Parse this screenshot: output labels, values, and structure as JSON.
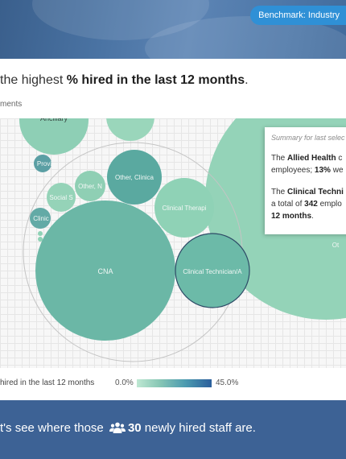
{
  "header": {
    "benchmark_label": "Benchmark: Industry"
  },
  "headline": {
    "prefix": "the highest ",
    "emphasis": "% hired in the last 12 months",
    "suffix": "."
  },
  "subhead": "ments",
  "chart_data": {
    "type": "bubble",
    "title": "the highest % hired in the last 12 months",
    "color_metric": "hired in the last 12 months",
    "color_scale": {
      "min": "0.0%",
      "max": "45.0%",
      "min_color": "#bfe8d3",
      "max_color": "#2c5f9c"
    },
    "groups": [
      {
        "name": "Clinical Technician/A",
        "bubbles": [
          {
            "label": "CNA",
            "color": "#6bb7a6"
          },
          {
            "label": "Clinical Technician/A",
            "color": "#6cbaa8",
            "highlighted": true
          },
          {
            "label": "Other, Clinica",
            "color": "#5aa9a0"
          },
          {
            "label": "Clinical Therapi",
            "color": "#8fd2b6"
          },
          {
            "label": "Other, N",
            "color": "#8fcfb4"
          },
          {
            "label": "Social S",
            "color": "#95d3b8"
          },
          {
            "label": "Provi",
            "color": "#5b9fa4"
          },
          {
            "label": "Clinic",
            "color": "#63aaa6"
          }
        ]
      },
      {
        "name": "Ancillary",
        "bubbles": [
          {
            "label": "Ancillary",
            "color": "#8ecfb5"
          }
        ]
      },
      {
        "name": "Allied Health",
        "bubbles": [
          {
            "label": "Ot",
            "color": "#94d3b8"
          }
        ]
      }
    ]
  },
  "summary": {
    "title": "Summary for last selec",
    "line1_prefix": "The ",
    "line1_bold": "Allied Health",
    "line1_suffix": " c",
    "line2_prefix": "employees; ",
    "line2_bold": "13%",
    "line2_suffix": " we",
    "line3_prefix": "The ",
    "line3_bold": "Clinical Techni",
    "line4_prefix": "a total of ",
    "line4_bold": "342",
    "line4_suffix": " emplo",
    "line5_bold": "12 months",
    "line5_suffix": "."
  },
  "legend": {
    "title": "hired in the last 12 months",
    "min_label": "0.0%",
    "max_label": "45.0%"
  },
  "footer": {
    "prefix": "t's see where those ",
    "count": "30",
    "suffix": " newly hired staff are.",
    "icon": "people-group-icon"
  }
}
